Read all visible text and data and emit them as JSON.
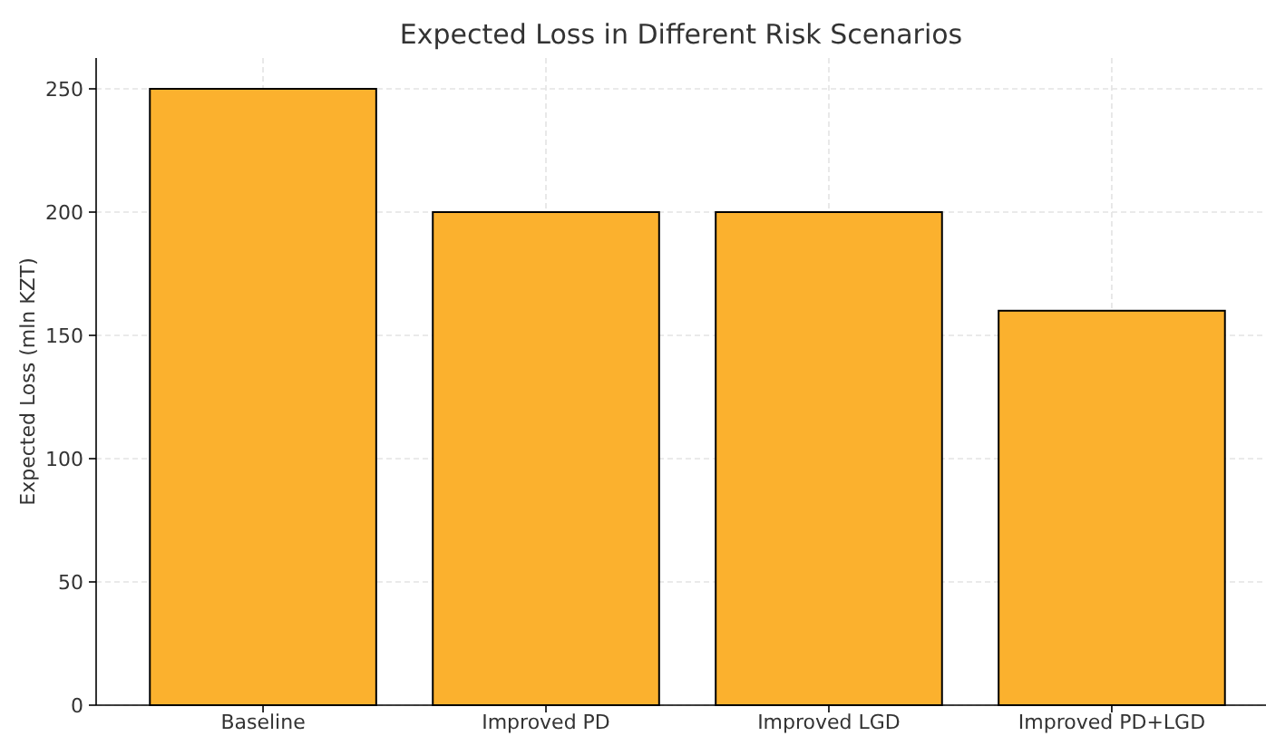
{
  "chart_data": {
    "type": "bar",
    "title": "Expected Loss in Different Risk Scenarios",
    "ylabel": "Expected Loss (mln KZT)",
    "categories": [
      "Baseline",
      "Improved PD",
      "Improved LGD",
      "Improved PD+LGD"
    ],
    "values": [
      250,
      200,
      200,
      160
    ],
    "color": "#fbb12e",
    "ylim": [
      0,
      262.5
    ],
    "yticks": [
      0,
      50,
      100,
      150,
      200,
      250
    ],
    "grid": true
  }
}
